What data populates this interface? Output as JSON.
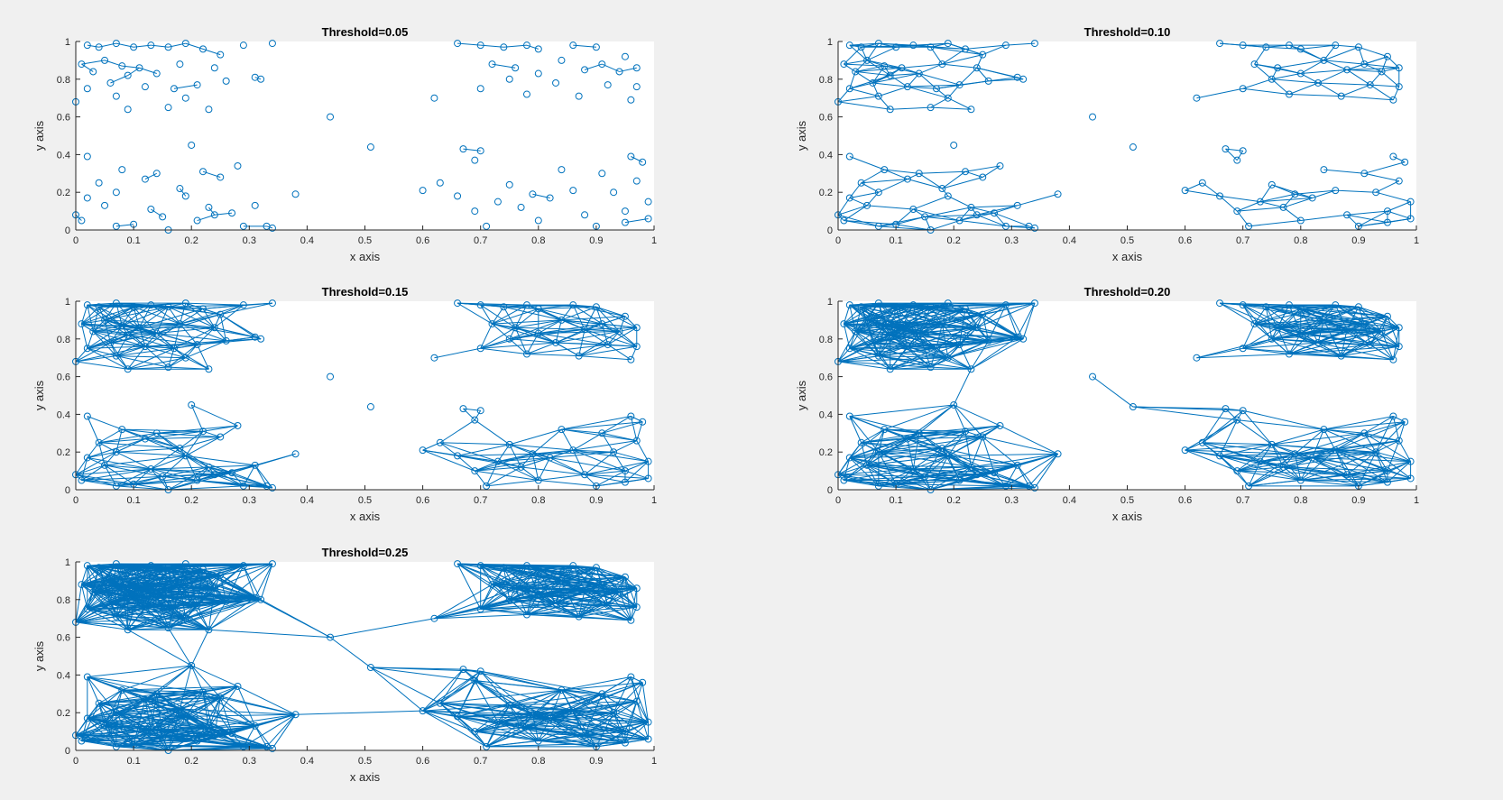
{
  "chart_data": [
    {
      "type": "scatter",
      "title": "Threshold=0.05",
      "xlabel": "x axis",
      "ylabel": "y axis",
      "xlim": [
        0,
        1
      ],
      "ylim": [
        0,
        1
      ],
      "xticks": [
        "0",
        "0.1",
        "0.2",
        "0.3",
        "0.4",
        "0.5",
        "0.6",
        "0.7",
        "0.8",
        "0.9",
        "1"
      ],
      "yticks": [
        "0",
        "0.2",
        "0.4",
        "0.6",
        "0.8",
        "1"
      ],
      "grid": false,
      "color": "#0072BD",
      "threshold": 0.05,
      "marker": "circle",
      "edges": "connect points closer than threshold"
    },
    {
      "type": "scatter",
      "title": "Threshold=0.10",
      "xlabel": "x axis",
      "ylabel": "y axis",
      "xlim": [
        0,
        1
      ],
      "ylim": [
        0,
        1
      ],
      "xticks": [
        "0",
        "0.1",
        "0.2",
        "0.3",
        "0.4",
        "0.5",
        "0.6",
        "0.7",
        "0.8",
        "0.9",
        "1"
      ],
      "yticks": [
        "0",
        "0.2",
        "0.4",
        "0.6",
        "0.8",
        "1"
      ],
      "grid": false,
      "color": "#0072BD",
      "threshold": 0.1,
      "marker": "circle",
      "edges": "connect points closer than threshold"
    },
    {
      "type": "scatter",
      "title": "Threshold=0.15",
      "xlabel": "x axis",
      "ylabel": "y axis",
      "xlim": [
        0,
        1
      ],
      "ylim": [
        0,
        1
      ],
      "xticks": [
        "0",
        "0.1",
        "0.2",
        "0.3",
        "0.4",
        "0.5",
        "0.6",
        "0.7",
        "0.8",
        "0.9",
        "1"
      ],
      "yticks": [
        "0",
        "0.2",
        "0.4",
        "0.6",
        "0.8",
        "1"
      ],
      "grid": false,
      "color": "#0072BD",
      "threshold": 0.15,
      "marker": "circle",
      "edges": "connect points closer than threshold"
    },
    {
      "type": "scatter",
      "title": "Threshold=0.20",
      "xlabel": "x axis",
      "ylabel": "y axis",
      "xlim": [
        0,
        1
      ],
      "ylim": [
        0,
        1
      ],
      "xticks": [
        "0",
        "0.1",
        "0.2",
        "0.3",
        "0.4",
        "0.5",
        "0.6",
        "0.7",
        "0.8",
        "0.9",
        "1"
      ],
      "yticks": [
        "0",
        "0.2",
        "0.4",
        "0.6",
        "0.8",
        "1"
      ],
      "grid": false,
      "color": "#0072BD",
      "threshold": 0.2,
      "marker": "circle",
      "edges": "connect points closer than threshold"
    },
    {
      "type": "scatter",
      "title": "Threshold=0.25",
      "xlabel": "x axis",
      "ylabel": "y axis",
      "xlim": [
        0,
        1
      ],
      "ylim": [
        0,
        1
      ],
      "xticks": [
        "0",
        "0.1",
        "0.2",
        "0.3",
        "0.4",
        "0.5",
        "0.6",
        "0.7",
        "0.8",
        "0.9",
        "1"
      ],
      "yticks": [
        "0",
        "0.2",
        "0.4",
        "0.6",
        "0.8",
        "1"
      ],
      "grid": false,
      "color": "#0072BD",
      "threshold": 0.25,
      "marker": "circle",
      "edges": "connect points closer than threshold"
    }
  ],
  "points": [
    [
      0.02,
      0.98
    ],
    [
      0.04,
      0.97
    ],
    [
      0.07,
      0.99
    ],
    [
      0.1,
      0.97
    ],
    [
      0.13,
      0.98
    ],
    [
      0.16,
      0.97
    ],
    [
      0.19,
      0.99
    ],
    [
      0.22,
      0.96
    ],
    [
      0.25,
      0.93
    ],
    [
      0.29,
      0.98
    ],
    [
      0.34,
      0.99
    ],
    [
      0.01,
      0.88
    ],
    [
      0.03,
      0.84
    ],
    [
      0.05,
      0.9
    ],
    [
      0.08,
      0.87
    ],
    [
      0.11,
      0.86
    ],
    [
      0.14,
      0.83
    ],
    [
      0.18,
      0.88
    ],
    [
      0.24,
      0.86
    ],
    [
      0.02,
      0.75
    ],
    [
      0.06,
      0.78
    ],
    [
      0.09,
      0.82
    ],
    [
      0.12,
      0.76
    ],
    [
      0.17,
      0.75
    ],
    [
      0.21,
      0.77
    ],
    [
      0.26,
      0.79
    ],
    [
      0.32,
      0.8
    ],
    [
      0.0,
      0.68
    ],
    [
      0.07,
      0.71
    ],
    [
      0.09,
      0.64
    ],
    [
      0.16,
      0.65
    ],
    [
      0.19,
      0.7
    ],
    [
      0.23,
      0.64
    ],
    [
      0.31,
      0.81
    ],
    [
      0.66,
      0.99
    ],
    [
      0.7,
      0.98
    ],
    [
      0.74,
      0.97
    ],
    [
      0.78,
      0.98
    ],
    [
      0.8,
      0.96
    ],
    [
      0.86,
      0.98
    ],
    [
      0.9,
      0.97
    ],
    [
      0.95,
      0.92
    ],
    [
      0.72,
      0.88
    ],
    [
      0.76,
      0.86
    ],
    [
      0.8,
      0.83
    ],
    [
      0.84,
      0.9
    ],
    [
      0.88,
      0.85
    ],
    [
      0.91,
      0.88
    ],
    [
      0.94,
      0.84
    ],
    [
      0.97,
      0.86
    ],
    [
      0.7,
      0.75
    ],
    [
      0.75,
      0.8
    ],
    [
      0.78,
      0.72
    ],
    [
      0.83,
      0.78
    ],
    [
      0.87,
      0.71
    ],
    [
      0.92,
      0.77
    ],
    [
      0.97,
      0.76
    ],
    [
      0.96,
      0.69
    ],
    [
      0.62,
      0.7
    ],
    [
      0.02,
      0.39
    ],
    [
      0.04,
      0.25
    ],
    [
      0.07,
      0.2
    ],
    [
      0.08,
      0.32
    ],
    [
      0.12,
      0.27
    ],
    [
      0.14,
      0.3
    ],
    [
      0.18,
      0.22
    ],
    [
      0.22,
      0.31
    ],
    [
      0.25,
      0.28
    ],
    [
      0.28,
      0.34
    ],
    [
      0.2,
      0.45
    ],
    [
      0.0,
      0.08
    ],
    [
      0.01,
      0.05
    ],
    [
      0.02,
      0.17
    ],
    [
      0.05,
      0.13
    ],
    [
      0.07,
      0.02
    ],
    [
      0.1,
      0.03
    ],
    [
      0.13,
      0.11
    ],
    [
      0.15,
      0.07
    ],
    [
      0.16,
      0.0
    ],
    [
      0.19,
      0.18
    ],
    [
      0.21,
      0.05
    ],
    [
      0.23,
      0.12
    ],
    [
      0.24,
      0.08
    ],
    [
      0.27,
      0.09
    ],
    [
      0.29,
      0.02
    ],
    [
      0.31,
      0.13
    ],
    [
      0.33,
      0.02
    ],
    [
      0.34,
      0.01
    ],
    [
      0.38,
      0.19
    ],
    [
      0.6,
      0.21
    ],
    [
      0.63,
      0.25
    ],
    [
      0.66,
      0.18
    ],
    [
      0.67,
      0.43
    ],
    [
      0.69,
      0.37
    ],
    [
      0.7,
      0.42
    ],
    [
      0.69,
      0.1
    ],
    [
      0.71,
      0.02
    ],
    [
      0.73,
      0.15
    ],
    [
      0.75,
      0.24
    ],
    [
      0.77,
      0.12
    ],
    [
      0.79,
      0.19
    ],
    [
      0.8,
      0.05
    ],
    [
      0.82,
      0.17
    ],
    [
      0.84,
      0.32
    ],
    [
      0.86,
      0.21
    ],
    [
      0.88,
      0.08
    ],
    [
      0.9,
      0.02
    ],
    [
      0.91,
      0.3
    ],
    [
      0.93,
      0.2
    ],
    [
      0.95,
      0.1
    ],
    [
      0.96,
      0.39
    ],
    [
      0.97,
      0.26
    ],
    [
      0.98,
      0.36
    ],
    [
      0.99,
      0.15
    ],
    [
      0.99,
      0.06
    ],
    [
      0.95,
      0.04
    ],
    [
      0.44,
      0.6
    ],
    [
      0.51,
      0.44
    ]
  ]
}
